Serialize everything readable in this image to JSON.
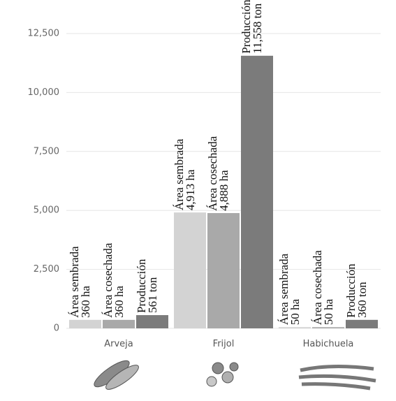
{
  "chart_data": {
    "type": "bar",
    "categories": [
      "Arveja",
      "Frijol",
      "Habichuela"
    ],
    "series": [
      {
        "name": "Área sembrada",
        "color": "#d3d3d3",
        "values": [
          360,
          4913,
          50
        ],
        "value_labels": [
          "360 ha",
          "4,913 ha",
          "50 ha"
        ]
      },
      {
        "name": "Área cosechada",
        "color": "#a9a9a9",
        "values": [
          360,
          4888,
          50
        ],
        "value_labels": [
          "360 ha",
          "4,888 ha",
          "50 ha"
        ]
      },
      {
        "name": "Producción",
        "color": "#7b7b7b",
        "values": [
          561,
          11558,
          360
        ],
        "value_labels": [
          "561 ton",
          "11,558 ton",
          "360 ton"
        ]
      }
    ],
    "ylim": [
      0,
      12500
    ],
    "yticks": [
      0,
      {
        "value": 2500,
        "label": "2,500"
      },
      {
        "value": 5000,
        "label": "5,000"
      },
      {
        "value": 7500,
        "label": "7,500"
      },
      {
        "value": 10000,
        "label": "10,000"
      },
      {
        "value": 12500,
        "label": "12,500"
      }
    ],
    "grid": true
  }
}
